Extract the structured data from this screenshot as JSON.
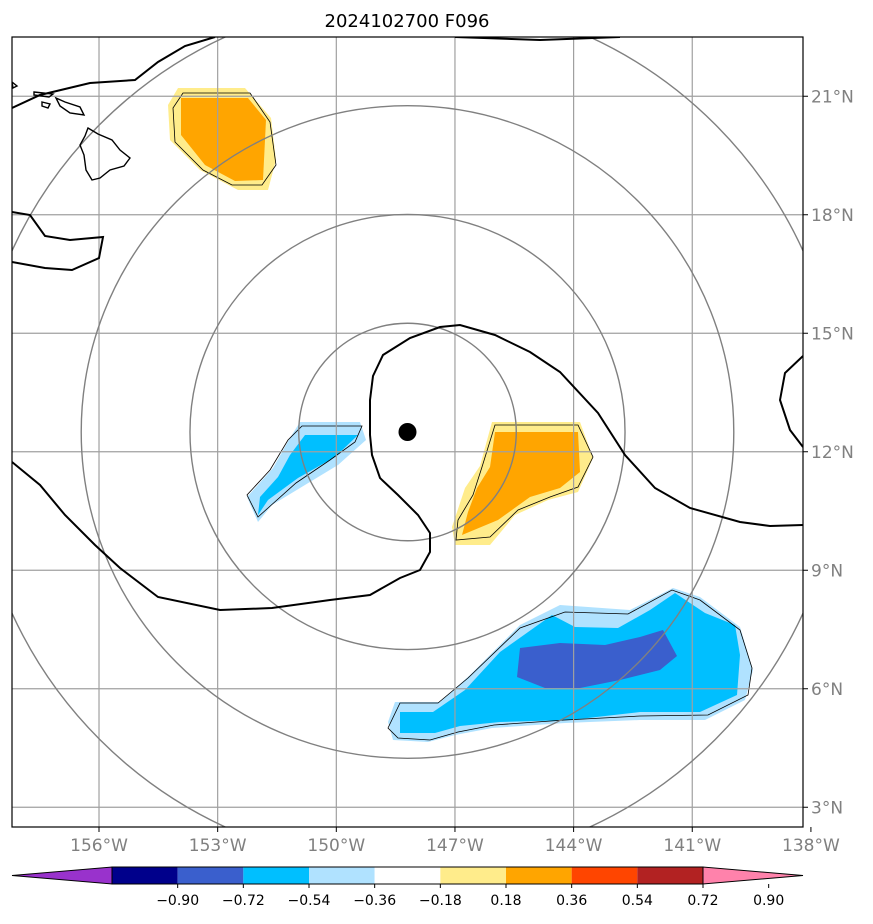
{
  "title": "2024102700 F096",
  "map": {
    "lon_range": [
      -158.2,
      -138.2
    ],
    "lat_range": [
      2.5,
      22.5
    ],
    "lon_ticks": [
      {
        "value": -156,
        "label": "156°W"
      },
      {
        "value": -153,
        "label": "153°W"
      },
      {
        "value": -150,
        "label": "150°W"
      },
      {
        "value": -147,
        "label": "147°W"
      },
      {
        "value": -144,
        "label": "144°W"
      },
      {
        "value": -141,
        "label": "141°W"
      },
      {
        "value": -138,
        "label": "138°W"
      }
    ],
    "lat_ticks": [
      {
        "value": 3,
        "label": "3°N"
      },
      {
        "value": 6,
        "label": "6°N"
      },
      {
        "value": 9,
        "label": "9°N"
      },
      {
        "value": 12,
        "label": "12°N"
      },
      {
        "value": 15,
        "label": "15°N"
      },
      {
        "value": 18,
        "label": "18°N"
      },
      {
        "value": 21,
        "label": "21°N"
      }
    ],
    "storm_center": {
      "lon": -148.2,
      "lat": 12.5
    },
    "range_rings_deg": [
      2.75,
      5.5,
      8.25,
      11.0
    ],
    "grid_color": "#a0a0a0",
    "ring_color": "#808080",
    "coast_color": "#000000"
  },
  "colorbar": {
    "colors": [
      "#9932cc",
      "#00008b",
      "#3a5fcd",
      "#00bfff",
      "#b0e2ff",
      "#ffffff",
      "#ffec8b",
      "#ffa500",
      "#ff4500",
      "#b22222",
      "#ff82ab"
    ],
    "tick_labels": [
      "−0.90",
      "−0.72",
      "−0.54",
      "−0.36",
      "−0.18",
      "0.18",
      "0.36",
      "0.54",
      "0.72",
      "0.90"
    ]
  }
}
